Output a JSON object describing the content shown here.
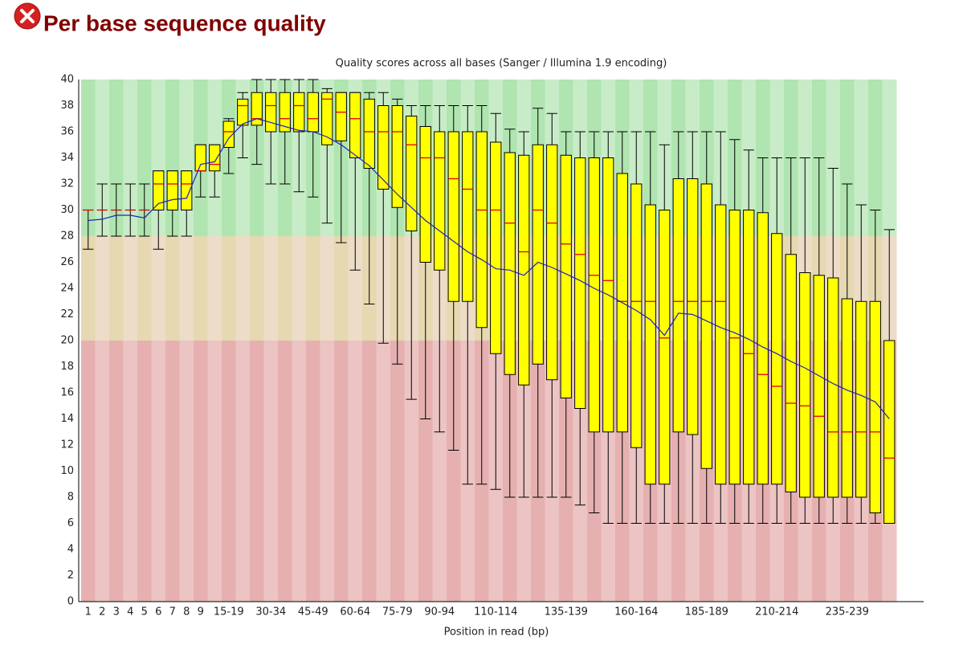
{
  "header": {
    "title": "Per base sequence quality"
  },
  "chart_data": {
    "type": "boxplot",
    "title": "Quality scores across all bases (Sanger / Illumina 1.9 encoding)",
    "x_label": "Position in read (bp)",
    "categories": [
      "1",
      "2",
      "3",
      "4",
      "5",
      "6",
      "7",
      "8",
      "9",
      null,
      "15-19",
      null,
      null,
      "30-34",
      null,
      null,
      "45-49",
      null,
      null,
      "60-64",
      null,
      null,
      "75-79",
      null,
      null,
      "90-94",
      null,
      null,
      null,
      "110-114",
      null,
      null,
      null,
      null,
      "135-139",
      null,
      null,
      null,
      null,
      "160-164",
      null,
      null,
      null,
      null,
      "185-189",
      null,
      null,
      null,
      null,
      "210-214",
      null,
      null,
      null,
      null,
      "235-239",
      null,
      null,
      null
    ],
    "whisker_low": [
      27,
      28,
      28,
      28,
      28,
      27,
      28,
      28,
      31,
      31,
      32.8,
      34,
      33.5,
      32,
      32,
      31.4,
      31,
      29,
      27.5,
      25.4,
      22.8,
      19.8,
      18.2,
      15.5,
      14,
      13,
      11.6,
      9,
      9,
      8.6,
      8,
      8,
      8,
      8,
      8,
      7.4,
      6.8,
      6,
      6,
      6,
      6,
      6,
      6,
      6,
      6,
      6,
      6,
      6,
      6,
      6,
      6,
      6,
      6,
      6,
      6,
      6,
      6,
      6
    ],
    "q1": [
      30,
      30,
      30,
      30,
      30,
      30,
      30,
      30,
      33,
      33,
      34.8,
      36.5,
      36.5,
      36,
      36,
      36,
      36,
      35,
      35.3,
      34,
      33.2,
      31.6,
      30.2,
      28.4,
      26,
      25.4,
      23,
      23,
      21,
      19,
      17.4,
      16.6,
      18.2,
      17,
      15.6,
      14.8,
      13,
      13,
      13,
      11.8,
      9,
      9,
      13,
      12.8,
      10.2,
      9,
      9,
      9,
      9,
      9,
      8.4,
      8,
      8,
      8,
      8,
      8,
      6.8,
      6
    ],
    "median": [
      30,
      30,
      30,
      30,
      30,
      32,
      32,
      32,
      33,
      33.5,
      36,
      38,
      37,
      38,
      37,
      38,
      37,
      38.5,
      37.5,
      37,
      36,
      36,
      36,
      35,
      34,
      34,
      32.4,
      31.6,
      30,
      30,
      29,
      26.8,
      30,
      29,
      27.4,
      26.6,
      25,
      24.6,
      23,
      23,
      23,
      20.2,
      23,
      23,
      23,
      23,
      20.2,
      19,
      17.4,
      16.5,
      15.2,
      15,
      14.2,
      13,
      13,
      13,
      13,
      11
    ],
    "q3": [
      30,
      30,
      30,
      30,
      30,
      33,
      33,
      33,
      35,
      35,
      36.8,
      38.5,
      39,
      39,
      39,
      39,
      39,
      39,
      39,
      39,
      38.5,
      38,
      38,
      37.2,
      36.4,
      36,
      36,
      36,
      36,
      35.2,
      34.4,
      34.2,
      35,
      35,
      34.2,
      34,
      34,
      34,
      32.8,
      32,
      30.4,
      30,
      32.4,
      32.4,
      32,
      30.4,
      30,
      30,
      29.8,
      28.2,
      26.6,
      25.2,
      25,
      24.8,
      23.2,
      23,
      23,
      20
    ],
    "whisker_high": [
      30,
      32,
      32,
      32,
      32,
      33,
      33,
      33,
      35,
      35,
      37,
      39,
      40,
      40,
      40,
      40,
      40,
      39.3,
      39,
      39,
      39,
      39,
      38.5,
      38,
      38,
      38,
      38,
      38,
      38,
      37.4,
      36.2,
      36,
      37.8,
      37.4,
      36,
      36,
      36,
      36,
      36,
      36,
      36,
      35,
      36,
      36,
      36,
      36,
      35.4,
      34.6,
      34,
      34,
      34,
      34,
      34,
      33.2,
      32,
      30.4,
      30,
      28.5
    ],
    "mean": [
      29.2,
      29.3,
      29.6,
      29.6,
      29.4,
      30.5,
      30.8,
      30.9,
      33.5,
      33.7,
      35.5,
      36.6,
      37,
      36.7,
      36.4,
      36.1,
      36,
      35.6,
      35,
      34.2,
      33.4,
      32.3,
      31.2,
      30.2,
      29.2,
      28.4,
      27.6,
      26.8,
      26.2,
      25.5,
      25.4,
      25,
      26,
      25.6,
      25.1,
      24.6,
      24,
      23.5,
      22.9,
      22.3,
      21.6,
      20.4,
      22.1,
      22,
      21.5,
      21,
      20.6,
      20.1,
      19.5,
      19,
      18.4,
      17.9,
      17.3,
      16.7,
      16.2,
      15.8,
      15.3,
      14
    ],
    "box_color": "#ffff00",
    "median_color": "#e00000",
    "mean_color": "#2020c0",
    "zones": [
      {
        "from": 28,
        "to": 40,
        "colors": [
          "#b0e4b0",
          "#c8ecc8"
        ]
      },
      {
        "from": 20,
        "to": 28,
        "colors": [
          "#e6d8b0",
          "#ecdcc8"
        ]
      },
      {
        "from": 0,
        "to": 20,
        "colors": [
          "#e6b0b0",
          "#ecc4c4"
        ]
      }
    ],
    "ylim": [
      0,
      40
    ],
    "yticks": [
      0,
      2,
      4,
      6,
      8,
      10,
      12,
      14,
      16,
      18,
      20,
      22,
      24,
      26,
      28,
      30,
      32,
      34,
      36,
      38,
      40
    ]
  }
}
